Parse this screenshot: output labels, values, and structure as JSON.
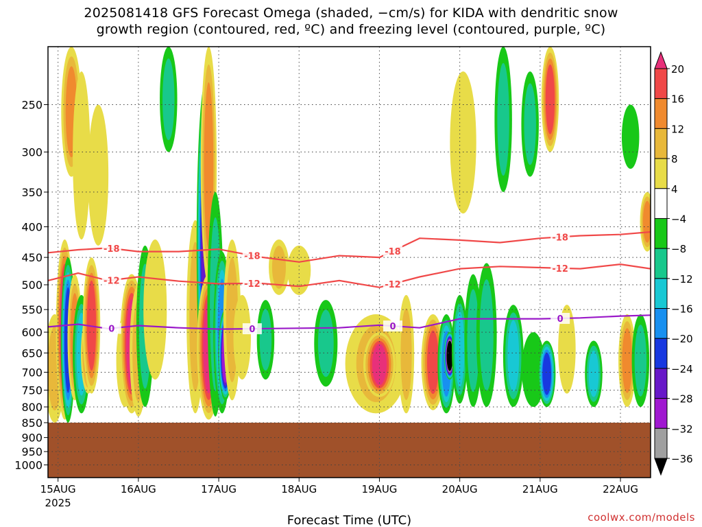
{
  "title_line1": "2025081418 GFS Forecast Omega (shaded, −cm/s) for KIDA with dendritic snow",
  "title_line2": "growth region (contoured, red, ºC) and freezing level (contoured, purple, ºC)",
  "credit": "coolwx.com/models",
  "chart_data": {
    "type": "heatmap",
    "title": "2025081418 GFS Forecast Omega (shaded, −cm/s) for KIDA with dendritic snow growth region (contoured, red, ºC) and freezing level (contoured, purple, ºC)",
    "xlabel": "Forecast Time (UTC)",
    "ylabel": "",
    "x_ticks": [
      "15AUG",
      "16AUG",
      "17AUG",
      "18AUG",
      "19AUG",
      "20AUG",
      "21AUG",
      "22AUG"
    ],
    "x_year_label": "2025",
    "xlim_hours": [
      -3,
      177
    ],
    "y_ticks": [
      250,
      300,
      350,
      400,
      450,
      500,
      550,
      600,
      650,
      700,
      750,
      800,
      850,
      900,
      950,
      1000
    ],
    "ylim_hpa": [
      200,
      1050
    ],
    "y_scale": "log-pressure",
    "grid": true,
    "terrain_top_hpa": 850,
    "colorbar": {
      "labels": [
        20,
        16,
        12,
        8,
        4,
        -4,
        -8,
        -12,
        -16,
        -20,
        -24,
        -28,
        -32,
        -36
      ],
      "colors": {
        "above_20": "#e8307a",
        "16_20": "#f04848",
        "12_16": "#f08a2e",
        "8_12": "#e8b83a",
        "4_8": "#e8dc48",
        "neutral": "#ffffff",
        "neg4_neg8": "#18c818",
        "neg8_neg12": "#18c88c",
        "neg12_neg16": "#18c8d4",
        "neg16_neg20": "#1890f0",
        "neg20_neg24": "#1838e0",
        "neg24_neg28": "#6818c8",
        "neg28_neg32": "#a018d0",
        "neg32_neg36": "#a0a0a0",
        "below_neg36": "#000000"
      }
    },
    "contours": [
      {
        "label": "-18",
        "color": "#f04848",
        "hours": [
          -3,
          6,
          15,
          24,
          36,
          48,
          60,
          72,
          84,
          96,
          108,
          120,
          132,
          144,
          156,
          168,
          177
        ],
        "hpa": [
          442,
          437,
          434,
          440,
          440,
          436,
          449,
          458,
          447,
          450,
          418,
          421,
          425,
          418,
          414,
          412,
          408
        ]
      },
      {
        "label": "-12",
        "color": "#f04848",
        "hours": [
          -3,
          6,
          15,
          24,
          36,
          48,
          60,
          72,
          84,
          96,
          108,
          120,
          132,
          144,
          156,
          168,
          177
        ],
        "hpa": [
          492,
          478,
          492,
          485,
          493,
          498,
          497,
          503,
          492,
          505,
          485,
          470,
          466,
          468,
          470,
          462,
          470
        ]
      },
      {
        "label": "0",
        "color": "#9a18c8",
        "hours": [
          -3,
          6,
          15,
          24,
          36,
          48,
          60,
          72,
          84,
          96,
          108,
          120,
          132,
          144,
          156,
          168,
          177
        ],
        "hpa": [
          588,
          582,
          592,
          585,
          590,
          593,
          592,
          591,
          590,
          584,
          590,
          570,
          570,
          570,
          568,
          564,
          562
        ]
      }
    ],
    "omega_cells": [
      {
        "h": -1,
        "p1": 560,
        "p2": 850,
        "w": 1.2,
        "v": 8
      },
      {
        "h": 2,
        "p1": 420,
        "p2": 840,
        "w": 1.0,
        "v": 24
      },
      {
        "h": 3,
        "p1": 450,
        "p2": 850,
        "w": 0.8,
        "v": -22
      },
      {
        "h": 5,
        "p1": 480,
        "p2": 780,
        "w": 0.8,
        "v": 12
      },
      {
        "h": 7,
        "p1": 520,
        "p2": 820,
        "w": 1.0,
        "v": -14
      },
      {
        "h": 9,
        "p1": 560,
        "p2": 760,
        "w": 0.8,
        "v": 14
      },
      {
        "h": 10,
        "p1": 450,
        "p2": 760,
        "w": 1.0,
        "v": 18
      },
      {
        "h": 4,
        "p1": 200,
        "p2": 330,
        "w": 1.2,
        "v": 12
      },
      {
        "h": 7,
        "p1": 220,
        "p2": 420,
        "w": 1.0,
        "v": 7
      },
      {
        "h": 12,
        "p1": 250,
        "p2": 430,
        "w": 1.2,
        "v": 6
      },
      {
        "h": 20,
        "p1": 560,
        "p2": 800,
        "w": 1.0,
        "v": 6
      },
      {
        "h": 22,
        "p1": 480,
        "p2": 820,
        "w": 1.4,
        "v": 22
      },
      {
        "h": 24,
        "p1": 500,
        "p2": 830,
        "w": 1.0,
        "v": 10
      },
      {
        "h": 26,
        "p1": 430,
        "p2": 800,
        "w": 1.0,
        "v": -10
      },
      {
        "h": 29,
        "p1": 420,
        "p2": 720,
        "w": 1.4,
        "v": 6
      },
      {
        "h": 33,
        "p1": 200,
        "p2": 300,
        "w": 1.0,
        "v": -8
      },
      {
        "h": 41,
        "p1": 390,
        "p2": 820,
        "w": 1.0,
        "v": 8
      },
      {
        "h": 44,
        "p1": 230,
        "p2": 800,
        "w": 1.0,
        "v": -24
      },
      {
        "h": 45,
        "p1": 200,
        "p2": 500,
        "w": 0.9,
        "v": 12
      },
      {
        "h": 45,
        "p1": 480,
        "p2": 840,
        "w": 1.4,
        "v": 24
      },
      {
        "h": 47,
        "p1": 350,
        "p2": 830,
        "w": 0.9,
        "v": -10
      },
      {
        "h": 49,
        "p1": 440,
        "p2": 820,
        "w": 1.0,
        "v": -16
      },
      {
        "h": 50,
        "p1": 550,
        "p2": 780,
        "w": 0.8,
        "v": -30
      },
      {
        "h": 52,
        "p1": 420,
        "p2": 780,
        "w": 1.0,
        "v": 8
      },
      {
        "h": 55,
        "p1": 520,
        "p2": 720,
        "w": 1.0,
        "v": 6
      },
      {
        "h": 62,
        "p1": 530,
        "p2": 720,
        "w": 1.0,
        "v": -8
      },
      {
        "h": 66,
        "p1": 420,
        "p2": 520,
        "w": 1.2,
        "v": 8
      },
      {
        "h": 72,
        "p1": 430,
        "p2": 520,
        "w": 1.4,
        "v": 6
      },
      {
        "h": 80,
        "p1": 530,
        "p2": 740,
        "w": 1.4,
        "v": -8
      },
      {
        "h": 95,
        "p1": 560,
        "p2": 820,
        "w": 4.0,
        "v": 10
      },
      {
        "h": 96,
        "p1": 600,
        "p2": 770,
        "w": 2.0,
        "v": 24
      },
      {
        "h": 104,
        "p1": 520,
        "p2": 820,
        "w": 0.9,
        "v": 8
      },
      {
        "h": 112,
        "p1": 560,
        "p2": 810,
        "w": 1.4,
        "v": 18
      },
      {
        "h": 116,
        "p1": 560,
        "p2": 820,
        "w": 1.0,
        "v": -18
      },
      {
        "h": 117,
        "p1": 600,
        "p2": 720,
        "w": 0.6,
        "v": -40
      },
      {
        "h": 120,
        "p1": 520,
        "p2": 790,
        "w": 0.9,
        "v": -12
      },
      {
        "h": 124,
        "p1": 480,
        "p2": 800,
        "w": 1.0,
        "v": -8
      },
      {
        "h": 128,
        "p1": 460,
        "p2": 800,
        "w": 1.2,
        "v": -8
      },
      {
        "h": 121,
        "p1": 220,
        "p2": 380,
        "w": 1.6,
        "v": 6
      },
      {
        "h": 136,
        "p1": 540,
        "p2": 800,
        "w": 1.2,
        "v": -14
      },
      {
        "h": 142,
        "p1": 600,
        "p2": 800,
        "w": 1.4,
        "v": -6
      },
      {
        "h": 146,
        "p1": 620,
        "p2": 800,
        "w": 1.0,
        "v": -22
      },
      {
        "h": 152,
        "p1": 540,
        "p2": 760,
        "w": 1.0,
        "v": 6
      },
      {
        "h": 160,
        "p1": 620,
        "p2": 800,
        "w": 1.0,
        "v": -14
      },
      {
        "h": 170,
        "p1": 560,
        "p2": 800,
        "w": 1.0,
        "v": 12
      },
      {
        "h": 174,
        "p1": 560,
        "p2": 800,
        "w": 1.0,
        "v": -10
      },
      {
        "h": 133,
        "p1": 200,
        "p2": 350,
        "w": 1.0,
        "v": -10
      },
      {
        "h": 141,
        "p1": 220,
        "p2": 330,
        "w": 1.0,
        "v": -10
      },
      {
        "h": 147,
        "p1": 200,
        "p2": 300,
        "w": 1.0,
        "v": 18
      },
      {
        "h": 171,
        "p1": 250,
        "p2": 320,
        "w": 1.0,
        "v": -6
      },
      {
        "h": 176,
        "p1": 350,
        "p2": 440,
        "w": 0.8,
        "v": 12
      }
    ]
  }
}
